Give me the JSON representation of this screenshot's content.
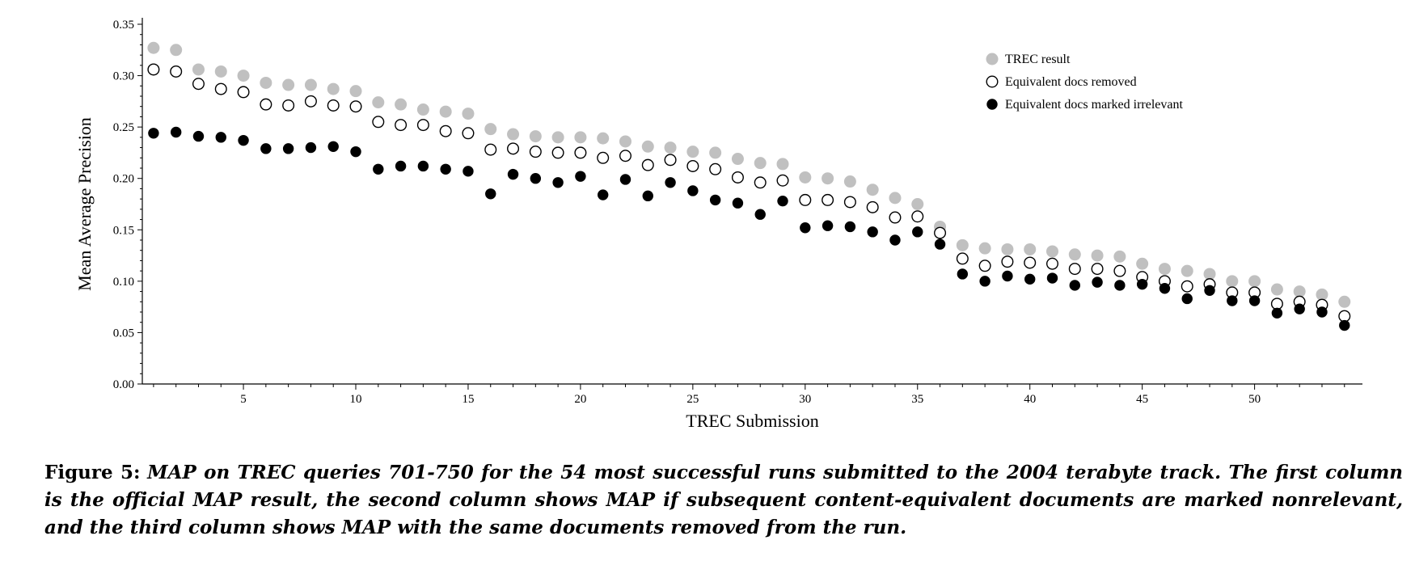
{
  "chart_data": {
    "type": "scatter",
    "xlabel": "TREC Submission",
    "ylabel": "Mean Average Precision",
    "xlim": [
      0.5,
      54.8
    ],
    "ylim": [
      0,
      0.35
    ],
    "x_ticks": [
      5,
      10,
      15,
      20,
      25,
      30,
      35,
      40,
      45,
      50
    ],
    "y_ticks": [
      "0.00",
      "0.05",
      "0.10",
      "0.15",
      "0.20",
      "0.25",
      "0.30",
      "0.35"
    ],
    "y_tick_values": [
      0,
      0.05,
      0.1,
      0.15,
      0.2,
      0.25,
      0.3,
      0.35
    ],
    "grid": false,
    "legend_position": "top-right",
    "series": [
      {
        "name": "TREC result",
        "marker": "gray-filled",
        "color": "#c0c0c0",
        "values": [
          0.327,
          0.325,
          0.306,
          0.304,
          0.3,
          0.293,
          0.291,
          0.291,
          0.287,
          0.285,
          0.274,
          0.272,
          0.267,
          0.265,
          0.263,
          0.248,
          0.243,
          0.241,
          0.24,
          0.24,
          0.239,
          0.236,
          0.231,
          0.23,
          0.226,
          0.225,
          0.219,
          0.215,
          0.214,
          0.201,
          0.2,
          0.197,
          0.189,
          0.181,
          0.175,
          0.153,
          0.135,
          0.132,
          0.131,
          0.131,
          0.129,
          0.126,
          0.125,
          0.124,
          0.117,
          0.112,
          0.11,
          0.107,
          0.1,
          0.1,
          0.092,
          0.09,
          0.087,
          0.08
        ]
      },
      {
        "name": "Equivalent docs removed",
        "marker": "open-circle",
        "color": "#000000",
        "values": [
          0.306,
          0.304,
          0.292,
          0.287,
          0.284,
          0.272,
          0.271,
          0.275,
          0.271,
          0.27,
          0.255,
          0.252,
          0.252,
          0.246,
          0.244,
          0.228,
          0.229,
          0.226,
          0.225,
          0.225,
          0.22,
          0.222,
          0.213,
          0.218,
          0.212,
          0.209,
          0.201,
          0.196,
          0.198,
          0.179,
          0.179,
          0.177,
          0.172,
          0.162,
          0.163,
          0.147,
          0.122,
          0.115,
          0.119,
          0.118,
          0.117,
          0.112,
          0.112,
          0.11,
          0.104,
          0.1,
          0.095,
          0.097,
          0.089,
          0.089,
          0.078,
          0.08,
          0.077,
          0.066
        ]
      },
      {
        "name": "Equivalent docs marked irrelevant",
        "marker": "black-filled",
        "color": "#000000",
        "values": [
          0.244,
          0.245,
          0.241,
          0.24,
          0.237,
          0.229,
          0.229,
          0.23,
          0.231,
          0.226,
          0.209,
          0.212,
          0.212,
          0.209,
          0.207,
          0.185,
          0.204,
          0.2,
          0.196,
          0.202,
          0.184,
          0.199,
          0.183,
          0.196,
          0.188,
          0.179,
          0.176,
          0.165,
          0.178,
          0.152,
          0.154,
          0.153,
          0.148,
          0.14,
          0.148,
          0.136,
          0.107,
          0.1,
          0.105,
          0.102,
          0.103,
          0.096,
          0.099,
          0.096,
          0.097,
          0.093,
          0.083,
          0.091,
          0.081,
          0.081,
          0.069,
          0.073,
          0.07,
          0.057
        ]
      }
    ]
  },
  "caption": {
    "label": "Figure 5:",
    "text": "MAP on TREC queries 701-750 for the 54 most successful runs submitted to the 2004 terabyte track. The first column is the official MAP result, the second column shows MAP if subsequent content-equivalent documents are marked nonrelevant, and the third column shows MAP with the same documents removed from the run."
  }
}
